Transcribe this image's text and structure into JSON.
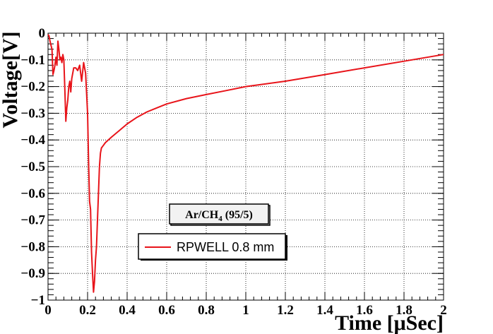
{
  "chart_data": {
    "type": "line",
    "xlabel": "Time [μSec]",
    "ylabel": "Voltage[V]",
    "xlim": [
      0,
      2
    ],
    "ylim": [
      -1,
      0
    ],
    "x_ticks": [
      "0",
      "0.2",
      "0.4",
      "0.6",
      "0.8",
      "1",
      "1.2",
      "1.4",
      "1.6",
      "1.8",
      "2"
    ],
    "y_ticks": [
      "0",
      "−0.1",
      "−0.2",
      "−0.3",
      "−0.4",
      "−0.5",
      "−0.6",
      "−0.7",
      "−0.8",
      "−0.9",
      "−1"
    ],
    "grid": true,
    "annotation": "Ar/CH4 (95/5)",
    "legend_placement": "center-left",
    "series": [
      {
        "name": "RPWELL 0.8 mm",
        "color": "#e8141a",
        "x": [
          0,
          0.005,
          0.01,
          0.02,
          0.025,
          0.03,
          0.035,
          0.04,
          0.045,
          0.05,
          0.055,
          0.06,
          0.065,
          0.07,
          0.075,
          0.08,
          0.085,
          0.09,
          0.095,
          0.1,
          0.105,
          0.11,
          0.115,
          0.12,
          0.125,
          0.13,
          0.14,
          0.15,
          0.16,
          0.17,
          0.18,
          0.19,
          0.2,
          0.205,
          0.21,
          0.215,
          0.22,
          0.225,
          0.23,
          0.235,
          0.24,
          0.245,
          0.25,
          0.255,
          0.26,
          0.265,
          0.27,
          0.275,
          0.28,
          0.29,
          0.32,
          0.36,
          0.4,
          0.45,
          0.5,
          0.55,
          0.6,
          0.7,
          0.8,
          0.9,
          1.0,
          1.2,
          1.4,
          1.6,
          1.8,
          2.0
        ],
        "y": [
          -0.005,
          -0.01,
          -0.03,
          -0.06,
          -0.155,
          -0.14,
          -0.12,
          -0.09,
          -0.12,
          -0.03,
          -0.06,
          -0.1,
          -0.09,
          -0.11,
          -0.08,
          -0.1,
          -0.21,
          -0.33,
          -0.28,
          -0.25,
          -0.2,
          -0.18,
          -0.22,
          -0.17,
          -0.15,
          -0.13,
          -0.13,
          -0.14,
          -0.12,
          -0.18,
          -0.11,
          -0.15,
          -0.3,
          -0.48,
          -0.63,
          -0.66,
          -0.82,
          -0.9,
          -0.97,
          -0.93,
          -0.85,
          -0.8,
          -0.7,
          -0.6,
          -0.5,
          -0.45,
          -0.43,
          -0.425,
          -0.42,
          -0.41,
          -0.39,
          -0.365,
          -0.34,
          -0.315,
          -0.295,
          -0.28,
          -0.265,
          -0.245,
          -0.23,
          -0.215,
          -0.2,
          -0.18,
          -0.155,
          -0.13,
          -0.105,
          -0.08
        ]
      }
    ]
  }
}
